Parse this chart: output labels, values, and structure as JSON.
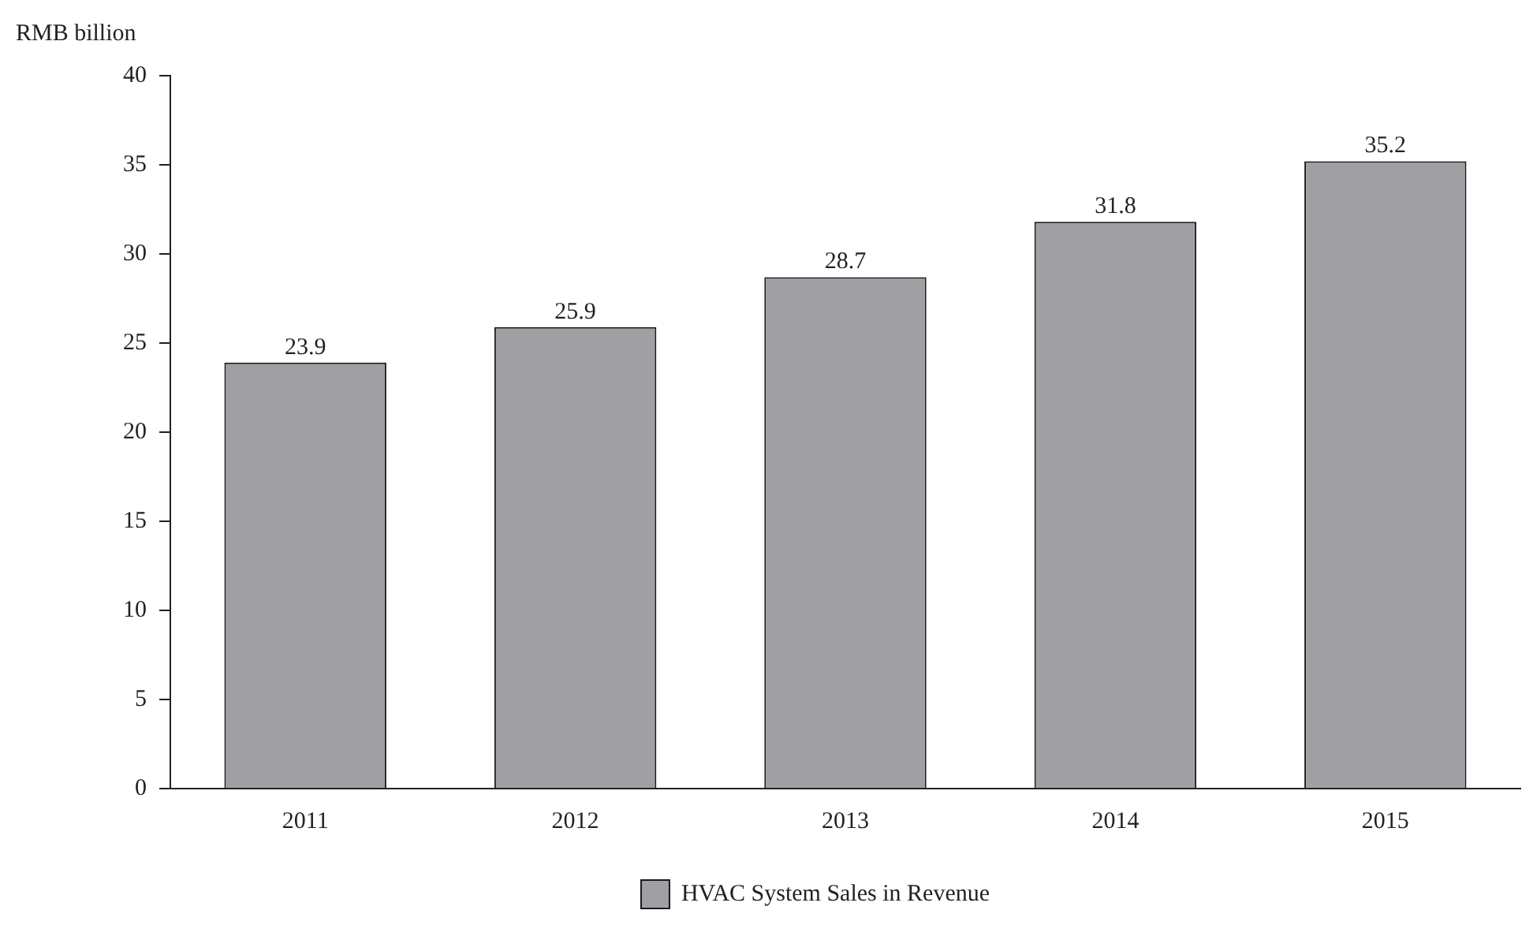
{
  "chart_data": {
    "type": "bar",
    "ylabel": "RMB billion",
    "categories": [
      "2011",
      "2012",
      "2013",
      "2014",
      "2015"
    ],
    "series": [
      {
        "name": "HVAC System Sales in Revenue",
        "color": "#a0a0a4",
        "values": [
          23.9,
          25.9,
          28.7,
          31.8,
          35.2
        ]
      }
    ],
    "ylim": [
      0,
      40
    ],
    "yticks": [
      0,
      5,
      10,
      15,
      20,
      25,
      30,
      35,
      40
    ],
    "grid": false,
    "legend": "bottom",
    "data_labels": true
  }
}
